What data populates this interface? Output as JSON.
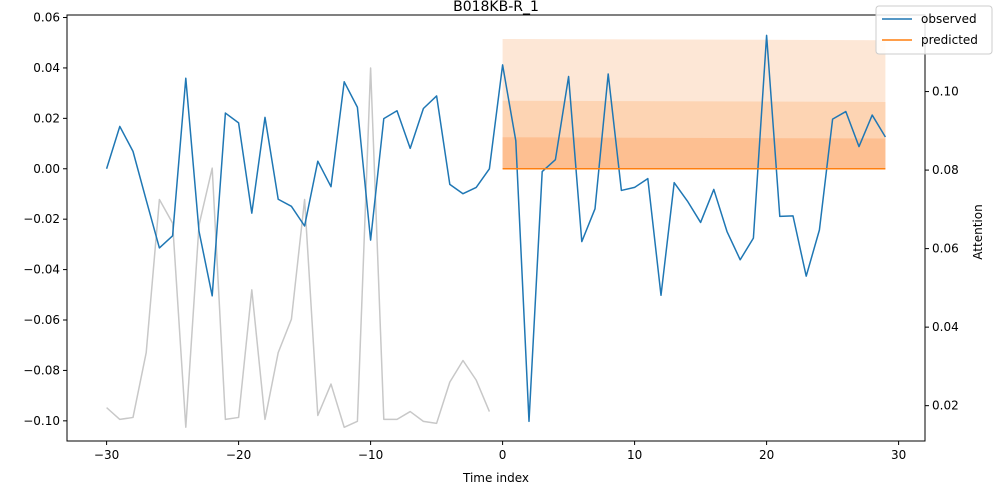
{
  "chart_data": {
    "type": "line",
    "title": "B018KB-R_1",
    "xlabel": "Time index",
    "ylabel": "",
    "y2label": "Attention",
    "xlim": [
      -33,
      32
    ],
    "ylim": [
      -0.108,
      0.061
    ],
    "y2lim": [
      0.011,
      0.1195
    ],
    "xticks": [
      -30,
      -20,
      -10,
      0,
      10,
      20,
      30
    ],
    "yticks": [
      -0.1,
      -0.08,
      -0.06,
      -0.04,
      -0.02,
      0.0,
      0.02,
      0.04,
      0.06
    ],
    "y2ticks": [
      0.02,
      0.04,
      0.06,
      0.08,
      0.1
    ],
    "xtick_labels": [
      "−30",
      "−20",
      "−10",
      "0",
      "10",
      "20",
      "30"
    ],
    "ytick_labels": [
      "−0.10",
      "−0.08",
      "−0.06",
      "−0.04",
      "−0.02",
      "0.00",
      "0.02",
      "0.04",
      "0.06"
    ],
    "y2tick_labels": [
      "0.02",
      "0.04",
      "0.06",
      "0.08",
      "0.10"
    ],
    "legend": {
      "placement": "top-right",
      "entries": [
        "observed",
        "predicted"
      ]
    },
    "colors": {
      "observed": "#1f77b4",
      "predicted": "#ff7f0e",
      "attention": "#c8c8c8",
      "band_outer": "#fde7d6",
      "band_mid": "#fdd4b3",
      "band_inner": "#fdbf91"
    },
    "series": [
      {
        "name": "observed",
        "axis": "left",
        "x": [
          -30,
          -29,
          -28,
          -27,
          -26,
          -25,
          -24,
          -23,
          -22,
          -21,
          -20,
          -19,
          -18,
          -17,
          -16,
          -15,
          -14,
          -13,
          -12,
          -11,
          -10,
          -9,
          -8,
          -7,
          -6,
          -5,
          -4,
          -3,
          -2,
          -1,
          0,
          1,
          2,
          3,
          4,
          5,
          6,
          7,
          8,
          9,
          10,
          11,
          12,
          13,
          14,
          15,
          16,
          17,
          18,
          19,
          20,
          21,
          22,
          23,
          24,
          25,
          26,
          27,
          28,
          29
        ],
        "values": [
          0.0,
          0.0168,
          0.0069,
          -0.0124,
          -0.0314,
          -0.0266,
          0.0359,
          -0.0248,
          -0.0504,
          0.0221,
          0.0182,
          -0.0176,
          0.0204,
          -0.0121,
          -0.0149,
          -0.0227,
          0.003,
          -0.0071,
          0.0345,
          0.0244,
          -0.0283,
          0.0199,
          0.023,
          0.0081,
          0.0239,
          0.0289,
          -0.0062,
          -0.0099,
          -0.0074,
          0.0,
          0.0412,
          0.0111,
          -0.1002,
          -0.0011,
          0.0036,
          0.0366,
          -0.0289,
          -0.0159,
          0.0376,
          -0.0086,
          -0.0074,
          -0.0039,
          -0.0502,
          -0.0055,
          -0.0128,
          -0.0213,
          -0.0082,
          -0.0249,
          -0.0361,
          -0.0275,
          0.0529,
          -0.0189,
          -0.0187,
          -0.0426,
          -0.0243,
          0.0197,
          0.0227,
          0.0088,
          0.0213,
          0.0126
        ]
      },
      {
        "name": "predicted",
        "axis": "left",
        "x": [
          0,
          29
        ],
        "values": [
          0.0,
          0.0
        ]
      },
      {
        "name": "attention",
        "axis": "right",
        "x": [
          -30,
          -29,
          -28,
          -27,
          -26,
          -25,
          -24,
          -23,
          -22,
          -21,
          -20,
          -19,
          -18,
          -17,
          -16,
          -15,
          -14,
          -13,
          -12,
          -11,
          -10,
          -9,
          -8,
          -7,
          -6,
          -5,
          -4,
          -3,
          -2,
          -1
        ],
        "values": [
          0.0195,
          0.0165,
          0.017,
          0.0335,
          0.0725,
          0.0665,
          0.0145,
          0.066,
          0.0805,
          0.0165,
          0.017,
          0.0495,
          0.0165,
          0.0335,
          0.042,
          0.0725,
          0.0175,
          0.0255,
          0.0145,
          0.016,
          0.106,
          0.0165,
          0.0165,
          0.0185,
          0.016,
          0.0155,
          0.026,
          0.0315,
          0.0265,
          0.0185
        ]
      }
    ],
    "bands": [
      {
        "x": [
          0,
          29
        ],
        "lower": [
          -0.0,
          -0.0
        ],
        "upper": [
          0.0515,
          0.051
        ]
      },
      {
        "x": [
          0,
          29
        ],
        "lower": [
          -0.0,
          -0.0
        ],
        "upper": [
          0.027,
          0.0265
        ]
      },
      {
        "x": [
          0,
          29
        ],
        "lower": [
          -0.0,
          -0.0
        ],
        "upper": [
          0.0125,
          0.012
        ]
      }
    ]
  }
}
